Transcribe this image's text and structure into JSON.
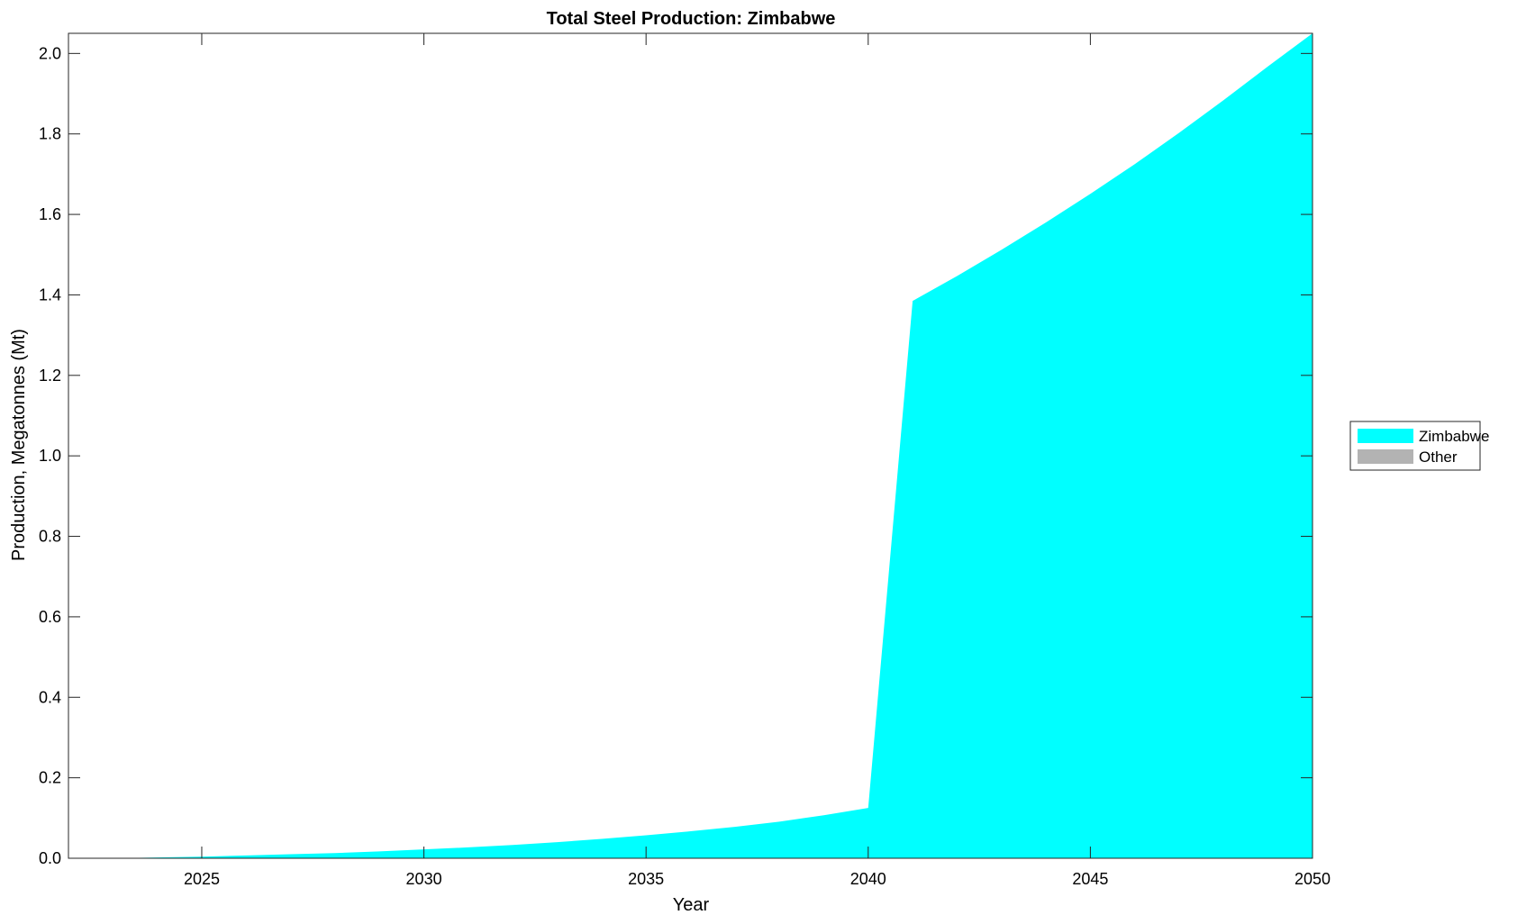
{
  "chart_data": {
    "type": "area",
    "stacked": true,
    "title": "Total Steel Production: Zimbabwe",
    "xlabel": "Year",
    "ylabel": "Production, Megatonnes (Mt)",
    "xlim": [
      2022,
      2050
    ],
    "ylim": [
      0,
      2.05
    ],
    "xticks": [
      2025,
      2030,
      2035,
      2040,
      2045,
      2050
    ],
    "yticks": [
      0.0,
      0.2,
      0.4,
      0.6,
      0.8,
      1.0,
      1.2,
      1.4,
      1.6,
      1.8,
      2.0
    ],
    "grid": false,
    "legend_placement": "right",
    "x": [
      2023,
      2024,
      2025,
      2026,
      2027,
      2028,
      2029,
      2030,
      2031,
      2032,
      2033,
      2034,
      2035,
      2036,
      2037,
      2038,
      2039,
      2040,
      2041,
      2042,
      2043,
      2044,
      2045,
      2046,
      2047,
      2048,
      2049,
      2050
    ],
    "series": [
      {
        "name": "Zimbabwe",
        "color": "#00ffff",
        "values": [
          0.0,
          0.002,
          0.004,
          0.007,
          0.01,
          0.013,
          0.017,
          0.022,
          0.027,
          0.033,
          0.04,
          0.048,
          0.057,
          0.067,
          0.078,
          0.091,
          0.107,
          0.125,
          1.385,
          1.447,
          1.512,
          1.58,
          1.651,
          1.725,
          1.803,
          1.884,
          1.968,
          2.05
        ]
      },
      {
        "name": "Other",
        "color": "#b3b3b3",
        "values": [
          0,
          0,
          0,
          0,
          0,
          0,
          0,
          0,
          0,
          0,
          0,
          0,
          0,
          0,
          0,
          0,
          0,
          0,
          0,
          0,
          0,
          0,
          0,
          0,
          0,
          0,
          0,
          0
        ]
      }
    ]
  }
}
